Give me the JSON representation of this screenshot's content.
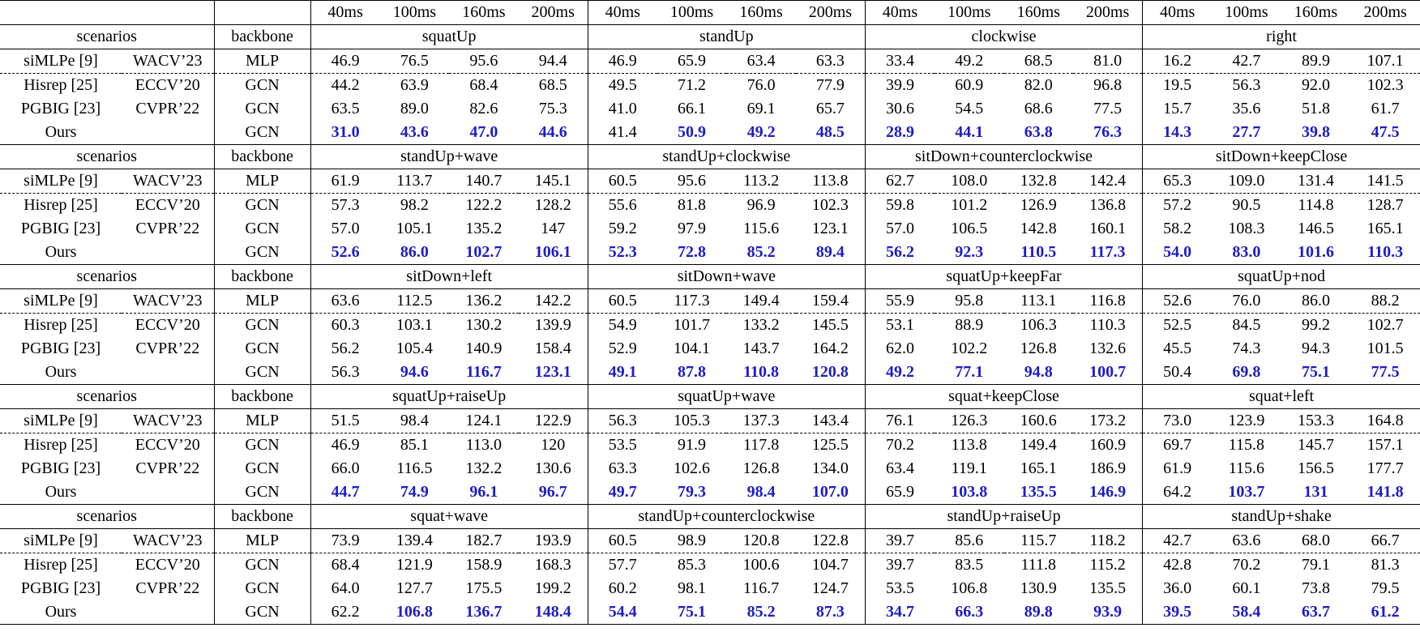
{
  "table": {
    "horizons": [
      "40ms",
      "100ms",
      "160ms",
      "200ms"
    ],
    "row_labels": {
      "scenarios": "scenarios",
      "backbone": "backbone"
    },
    "emphasis_color": "#1c1cc8",
    "blocks": [
      {
        "scenarios": [
          "squatUp",
          "standUp",
          "clockwise",
          "right"
        ],
        "rows": [
          {
            "method": "siMLPe [9]",
            "venue": "WACV’23",
            "backbone": "MLP",
            "values": [
              "46.9",
              "76.5",
              "95.6",
              "94.4",
              "46.9",
              "65.9",
              "63.4",
              "63.3",
              "33.4",
              "49.2",
              "68.5",
              "81.0",
              "16.2",
              "42.7",
              "89.9",
              "107.1"
            ]
          },
          {
            "method": "Hisrep [25]",
            "venue": "ECCV’20",
            "backbone": "GCN",
            "values": [
              "44.2",
              "63.9",
              "68.4",
              "68.5",
              "49.5",
              "71.2",
              "76.0",
              "77.9",
              "39.9",
              "60.9",
              "82.0",
              "96.8",
              "19.5",
              "56.3",
              "92.0",
              "102.3"
            ]
          },
          {
            "method": "PGBIG [23]",
            "venue": "CVPR’22",
            "backbone": "GCN",
            "values": [
              "63.5",
              "89.0",
              "82.6",
              "75.3",
              "41.0",
              "66.1",
              "69.1",
              "65.7",
              "30.6",
              "54.5",
              "68.6",
              "77.5",
              "15.7",
              "35.6",
              "51.8",
              "61.7"
            ]
          },
          {
            "method": "Ours",
            "backbone": "GCN",
            "values": [
              "31.0",
              "43.6",
              "47.0",
              "44.6",
              "41.4",
              "50.9",
              "49.2",
              "48.5",
              "28.9",
              "44.1",
              "63.8",
              "76.3",
              "14.3",
              "27.7",
              "39.8",
              "47.5"
            ],
            "bold": [
              true,
              true,
              true,
              true,
              false,
              true,
              true,
              true,
              true,
              true,
              true,
              true,
              true,
              true,
              true,
              true
            ]
          }
        ]
      },
      {
        "scenarios": [
          "standUp+wave",
          "standUp+clockwise",
          "sitDown+counterclockwise",
          "sitDown+keepClose"
        ],
        "rows": [
          {
            "method": "siMLPe [9]",
            "venue": "WACV’23",
            "backbone": "MLP",
            "values": [
              "61.9",
              "113.7",
              "140.7",
              "145.1",
              "60.5",
              "95.6",
              "113.2",
              "113.8",
              "62.7",
              "108.0",
              "132.8",
              "142.4",
              "65.3",
              "109.0",
              "131.4",
              "141.5"
            ]
          },
          {
            "method": "Hisrep [25]",
            "venue": "ECCV’20",
            "backbone": "GCN",
            "values": [
              "57.3",
              "98.2",
              "122.2",
              "128.2",
              "55.6",
              "81.8",
              "96.9",
              "102.3",
              "59.8",
              "101.2",
              "126.9",
              "136.8",
              "57.2",
              "90.5",
              "114.8",
              "128.7"
            ]
          },
          {
            "method": "PGBIG [23]",
            "venue": "CVPR’22",
            "backbone": "GCN",
            "values": [
              "57.0",
              "105.1",
              "135.2",
              "147",
              "59.2",
              "97.9",
              "115.6",
              "123.1",
              "57.0",
              "106.5",
              "142.8",
              "160.1",
              "58.2",
              "108.3",
              "146.5",
              "165.1"
            ]
          },
          {
            "method": "Ours",
            "backbone": "GCN",
            "values": [
              "52.6",
              "86.0",
              "102.7",
              "106.1",
              "52.3",
              "72.8",
              "85.2",
              "89.4",
              "56.2",
              "92.3",
              "110.5",
              "117.3",
              "54.0",
              "83.0",
              "101.6",
              "110.3"
            ],
            "bold": [
              true,
              true,
              true,
              true,
              true,
              true,
              true,
              true,
              true,
              true,
              true,
              true,
              true,
              true,
              true,
              true
            ]
          }
        ]
      },
      {
        "scenarios": [
          "sitDown+left",
          "sitDown+wave",
          "squatUp+keepFar",
          "squatUp+nod"
        ],
        "rows": [
          {
            "method": "siMLPe [9]",
            "venue": "WACV’23",
            "backbone": "MLP",
            "values": [
              "63.6",
              "112.5",
              "136.2",
              "142.2",
              "60.5",
              "117.3",
              "149.4",
              "159.4",
              "55.9",
              "95.8",
              "113.1",
              "116.8",
              "52.6",
              "76.0",
              "86.0",
              "88.2"
            ]
          },
          {
            "method": "Hisrep [25]",
            "venue": "ECCV’20",
            "backbone": "GCN",
            "values": [
              "60.3",
              "103.1",
              "130.2",
              "139.9",
              "54.9",
              "101.7",
              "133.2",
              "145.5",
              "53.1",
              "88.9",
              "106.3",
              "110.3",
              "52.5",
              "84.5",
              "99.2",
              "102.7"
            ]
          },
          {
            "method": "PGBIG [23]",
            "venue": "CVPR’22",
            "backbone": "GCN",
            "values": [
              "56.2",
              "105.4",
              "140.9",
              "158.4",
              "52.9",
              "104.1",
              "143.7",
              "164.2",
              "62.0",
              "102.2",
              "126.8",
              "132.6",
              "45.5",
              "74.3",
              "94.3",
              "101.5"
            ]
          },
          {
            "method": "Ours",
            "backbone": "GCN",
            "values": [
              "56.3",
              "94.6",
              "116.7",
              "123.1",
              "49.1",
              "87.8",
              "110.8",
              "120.8",
              "49.2",
              "77.1",
              "94.8",
              "100.7",
              "50.4",
              "69.8",
              "75.1",
              "77.5"
            ],
            "bold": [
              false,
              true,
              true,
              true,
              true,
              true,
              true,
              true,
              true,
              true,
              true,
              true,
              false,
              true,
              true,
              true
            ]
          }
        ]
      },
      {
        "scenarios": [
          "squatUp+raiseUp",
          "squatUp+wave",
          "squat+keepClose",
          "squat+left"
        ],
        "rows": [
          {
            "method": "siMLPe [9]",
            "venue": "WACV’23",
            "backbone": "MLP",
            "values": [
              "51.5",
              "98.4",
              "124.1",
              "122.9",
              "56.3",
              "105.3",
              "137.3",
              "143.4",
              "76.1",
              "126.3",
              "160.6",
              "173.2",
              "73.0",
              "123.9",
              "153.3",
              "164.8"
            ]
          },
          {
            "method": "Hisrep [25]",
            "venue": "ECCV’20",
            "backbone": "GCN",
            "values": [
              "46.9",
              "85.1",
              "113.0",
              "120",
              "53.5",
              "91.9",
              "117.8",
              "125.5",
              "70.2",
              "113.8",
              "149.4",
              "160.9",
              "69.7",
              "115.8",
              "145.7",
              "157.1"
            ]
          },
          {
            "method": "PGBIG [23]",
            "venue": "CVPR’22",
            "backbone": "GCN",
            "values": [
              "66.0",
              "116.5",
              "132.2",
              "130.6",
              "63.3",
              "102.6",
              "126.8",
              "134.0",
              "63.4",
              "119.1",
              "165.1",
              "186.9",
              "61.9",
              "115.6",
              "156.5",
              "177.7"
            ]
          },
          {
            "method": "Ours",
            "backbone": "GCN",
            "values": [
              "44.7",
              "74.9",
              "96.1",
              "96.7",
              "49.7",
              "79.3",
              "98.4",
              "107.0",
              "65.9",
              "103.8",
              "135.5",
              "146.9",
              "64.2",
              "103.7",
              "131",
              "141.8"
            ],
            "bold": [
              true,
              true,
              true,
              true,
              true,
              true,
              true,
              true,
              false,
              true,
              true,
              true,
              false,
              true,
              true,
              true
            ]
          }
        ]
      },
      {
        "scenarios": [
          "squat+wave",
          "standUp+counterclockwise",
          "standUp+raiseUp",
          "standUp+shake"
        ],
        "rows": [
          {
            "method": "siMLPe [9]",
            "venue": "WACV’23",
            "backbone": "MLP",
            "values": [
              "73.9",
              "139.4",
              "182.7",
              "193.9",
              "60.5",
              "98.9",
              "120.8",
              "122.8",
              "39.7",
              "85.6",
              "115.7",
              "118.2",
              "42.7",
              "63.6",
              "68.0",
              "66.7"
            ]
          },
          {
            "method": "Hisrep [25]",
            "venue": "ECCV’20",
            "backbone": "GCN",
            "values": [
              "68.4",
              "121.9",
              "158.9",
              "168.3",
              "57.7",
              "85.3",
              "100.6",
              "104.7",
              "39.7",
              "83.5",
              "111.8",
              "115.2",
              "42.8",
              "70.2",
              "79.1",
              "81.3"
            ]
          },
          {
            "method": "PGBIG [23]",
            "venue": "CVPR’22",
            "backbone": "GCN",
            "values": [
              "64.0",
              "127.7",
              "175.5",
              "199.2",
              "60.2",
              "98.1",
              "116.7",
              "124.7",
              "53.5",
              "106.8",
              "130.9",
              "135.5",
              "36.0",
              "60.1",
              "73.8",
              "79.5"
            ]
          },
          {
            "method": "Ours",
            "backbone": "GCN",
            "values": [
              "62.2",
              "106.8",
              "136.7",
              "148.4",
              "54.4",
              "75.1",
              "85.2",
              "87.3",
              "34.7",
              "66.3",
              "89.8",
              "93.9",
              "39.5",
              "58.4",
              "63.7",
              "61.2"
            ],
            "bold": [
              false,
              true,
              true,
              true,
              true,
              true,
              true,
              true,
              true,
              true,
              true,
              true,
              true,
              true,
              true,
              true
            ]
          }
        ]
      }
    ]
  }
}
